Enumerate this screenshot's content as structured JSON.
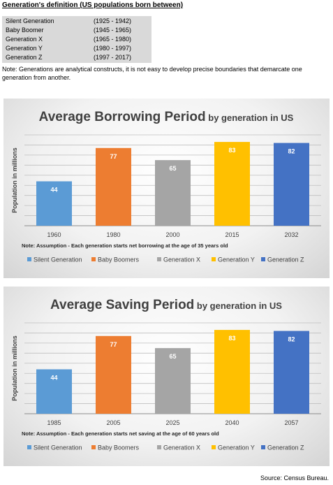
{
  "definitions": {
    "title": "Generation's definition (US populations born between)",
    "rows": [
      {
        "name": "Silent Generation",
        "range": "(1925 - 1942)"
      },
      {
        "name": "Baby Boomer",
        "range": "(1945 - 1965)"
      },
      {
        "name": "Generation X",
        "range": "(1965 - 1980)"
      },
      {
        "name": "Generation Y",
        "range": "(1980 - 1997)"
      },
      {
        "name": "Generation Z",
        "range": "(1997 - 2017)"
      }
    ],
    "note": "Note: Generations are analytical constructs, it is not easy to develop precise boundaries that demarcate one generation from another."
  },
  "chart_data": [
    {
      "type": "bar",
      "title_main": "Average Borrowing Period",
      "title_sub": " by generation in US",
      "ylabel": "Population in millions",
      "categories": [
        "1960",
        "1980",
        "2000",
        "2015",
        "2032"
      ],
      "values": [
        44,
        77,
        65,
        83,
        82
      ],
      "series_names": [
        "Silent Generation",
        "Baby Boomers",
        "Generation X",
        "Generation Y",
        "Generation Z"
      ],
      "colors": [
        "#5b9bd5",
        "#ed7d31",
        "#a5a5a5",
        "#ffc000",
        "#4472c4"
      ],
      "ylim": [
        0,
        90
      ],
      "grid": true,
      "legend_position": "bottom",
      "note": "Note: Assumption - Each generation starts net borrowing at the age of 35 years old"
    },
    {
      "type": "bar",
      "title_main": "Average Saving Period",
      "title_sub": " by generation in US",
      "ylabel": "Population in millions",
      "categories": [
        "1985",
        "2005",
        "2025",
        "2040",
        "2057"
      ],
      "values": [
        44,
        77,
        65,
        83,
        82
      ],
      "series_names": [
        "Silent Generation",
        "Baby Boomers",
        "Generation X",
        "Generation Y",
        "Generation Z"
      ],
      "colors": [
        "#5b9bd5",
        "#ed7d31",
        "#a5a5a5",
        "#ffc000",
        "#4472c4"
      ],
      "ylim": [
        0,
        90
      ],
      "grid": true,
      "legend_position": "bottom",
      "note": "Note: Assumption - Each generation starts net saving at the age of 60 years old"
    }
  ],
  "source": "Source: Census Bureau."
}
